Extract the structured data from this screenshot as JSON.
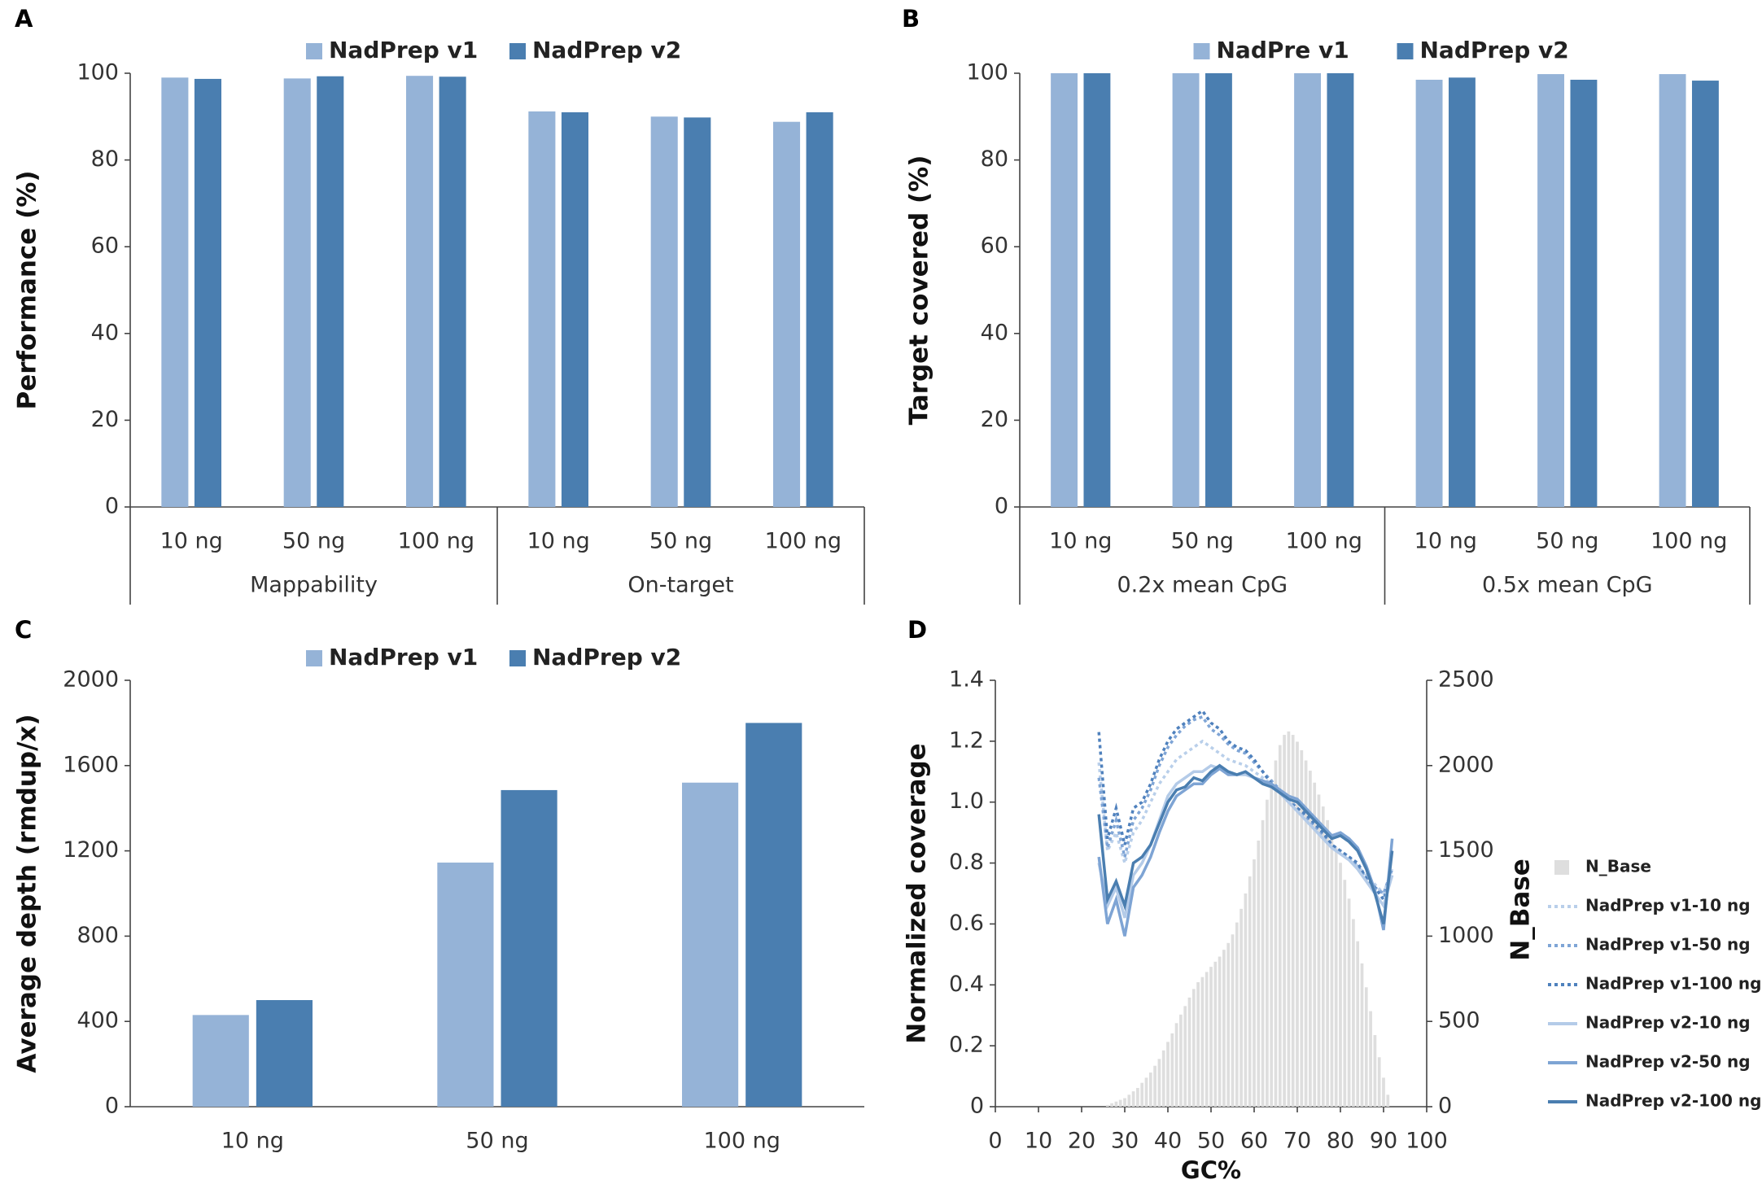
{
  "chart_data": [
    {
      "panel": "A",
      "type": "bar",
      "ylabel": "Performance (%)",
      "categories": [
        "10 ng",
        "50 ng",
        "100 ng",
        "10 ng",
        "50 ng",
        "100 ng"
      ],
      "groups": [
        "Mappability",
        "On-target"
      ],
      "series": [
        {
          "name": "NadPrep v1",
          "color": "#95b3d7",
          "values": [
            99,
            98.8,
            99.4,
            91.2,
            90,
            88.8
          ]
        },
        {
          "name": "NadPrep v2",
          "color": "#4a7eb0",
          "values": [
            98.7,
            99.3,
            99.2,
            91,
            89.8,
            91
          ]
        }
      ],
      "ylim": [
        0,
        100
      ],
      "yticks": [
        0,
        20,
        40,
        60,
        80,
        100
      ],
      "legend": "top"
    },
    {
      "panel": "B",
      "type": "bar",
      "ylabel": "Target covered (%)",
      "categories": [
        "10 ng",
        "50 ng",
        "100 ng",
        "10 ng",
        "50 ng",
        "100 ng"
      ],
      "groups": [
        "0.2x mean CpG",
        "0.5x mean CpG"
      ],
      "series": [
        {
          "name": "NadPre v1",
          "color": "#95b3d7",
          "values": [
            100,
            100,
            100,
            98.5,
            99.8,
            99.8
          ]
        },
        {
          "name": "NadPrep v2",
          "color": "#4a7eb0",
          "values": [
            100,
            100,
            100,
            99,
            98.5,
            98.3
          ]
        }
      ],
      "ylim": [
        0,
        100
      ],
      "yticks": [
        0,
        20,
        40,
        60,
        80,
        100
      ],
      "legend": "top"
    },
    {
      "panel": "C",
      "type": "bar",
      "ylabel": "Average depth (rmdup/x)",
      "categories": [
        "10 ng",
        "50 ng",
        "100 ng"
      ],
      "series": [
        {
          "name": "NadPrep v1",
          "color": "#95b3d7",
          "values": [
            430,
            1145,
            1520
          ]
        },
        {
          "name": "NadPrep v2",
          "color": "#4a7eb0",
          "values": [
            500,
            1485,
            1800
          ]
        }
      ],
      "ylim": [
        0,
        2000
      ],
      "yticks": [
        0,
        400,
        800,
        1200,
        1600,
        2000
      ],
      "legend": "top"
    },
    {
      "panel": "D",
      "type": "line",
      "xlabel": "GC%",
      "ylabel": "Normalized coverage",
      "y2label": "N_Base",
      "x": [
        24,
        26,
        28,
        30,
        32,
        34,
        36,
        38,
        40,
        42,
        44,
        46,
        48,
        50,
        52,
        54,
        56,
        58,
        60,
        62,
        64,
        66,
        68,
        70,
        72,
        74,
        76,
        78,
        80,
        82,
        84,
        86,
        88,
        90,
        92
      ],
      "series": [
        {
          "name": "N_Base",
          "type": "bar",
          "axis": "y2",
          "color": "#dedede",
          "x": [
            26,
            27,
            28,
            29,
            30,
            31,
            32,
            33,
            34,
            35,
            36,
            37,
            38,
            39,
            40,
            41,
            42,
            43,
            44,
            45,
            46,
            47,
            48,
            49,
            50,
            51,
            52,
            53,
            54,
            55,
            56,
            57,
            58,
            59,
            60,
            61,
            62,
            63,
            64,
            65,
            66,
            67,
            68,
            69,
            70,
            71,
            72,
            73,
            74,
            75,
            76,
            77,
            78,
            79,
            80,
            81,
            82,
            83,
            84,
            85,
            86,
            87,
            88,
            89,
            90,
            91
          ],
          "values": [
            10,
            20,
            30,
            40,
            50,
            70,
            90,
            110,
            140,
            170,
            200,
            240,
            280,
            330,
            380,
            430,
            490,
            540,
            590,
            640,
            690,
            730,
            760,
            790,
            820,
            850,
            880,
            920,
            960,
            1010,
            1080,
            1160,
            1250,
            1350,
            1450,
            1560,
            1680,
            1800,
            1920,
            2030,
            2120,
            2180,
            2200,
            2180,
            2140,
            2090,
            2030,
            1970,
            1900,
            1830,
            1760,
            1680,
            1600,
            1520,
            1430,
            1330,
            1220,
            1100,
            970,
            840,
            700,
            560,
            420,
            290,
            170,
            70
          ]
        },
        {
          "name": "NadPrep v1-10 ng",
          "color": "#b9cfea",
          "style": "dotted",
          "values": [
            1.13,
            0.84,
            0.9,
            0.8,
            0.9,
            0.94,
            1.0,
            1.06,
            1.1,
            1.14,
            1.16,
            1.18,
            1.2,
            1.18,
            1.16,
            1.14,
            1.13,
            1.12,
            1.1,
            1.08,
            1.06,
            1.03,
            1.0,
            0.97,
            0.94,
            0.91,
            0.88,
            0.85,
            0.83,
            0.81,
            0.79,
            0.76,
            0.73,
            0.7,
            0.78
          ]
        },
        {
          "name": "NadPrep v1-50 ng",
          "color": "#7fa5d6",
          "style": "dotted",
          "values": [
            1.08,
            0.85,
            0.94,
            0.82,
            0.94,
            0.98,
            1.04,
            1.12,
            1.18,
            1.22,
            1.25,
            1.27,
            1.28,
            1.24,
            1.22,
            1.19,
            1.17,
            1.16,
            1.13,
            1.1,
            1.07,
            1.04,
            1.01,
            0.98,
            0.95,
            0.92,
            0.89,
            0.86,
            0.84,
            0.82,
            0.79,
            0.75,
            0.72,
            0.7,
            0.78
          ]
        },
        {
          "name": "NadPrep v1-100 ng",
          "color": "#4f81bd",
          "style": "dotted",
          "values": [
            1.23,
            0.88,
            0.98,
            0.86,
            0.98,
            1.0,
            1.06,
            1.14,
            1.2,
            1.24,
            1.26,
            1.28,
            1.3,
            1.26,
            1.24,
            1.2,
            1.18,
            1.17,
            1.14,
            1.1,
            1.06,
            1.03,
            1.0,
            0.98,
            0.96,
            0.93,
            0.9,
            0.86,
            0.84,
            0.82,
            0.8,
            0.75,
            0.72,
            0.68,
            0.76
          ]
        },
        {
          "name": "NadPrep v2-10 ng",
          "color": "#b4cbe8",
          "style": "solid",
          "values": [
            0.8,
            0.66,
            0.72,
            0.62,
            0.76,
            0.8,
            0.86,
            0.94,
            1.02,
            1.06,
            1.08,
            1.1,
            1.1,
            1.12,
            1.11,
            1.1,
            1.09,
            1.09,
            1.08,
            1.07,
            1.06,
            1.03,
            1.0,
            0.97,
            0.94,
            0.91,
            0.88,
            0.85,
            0.83,
            0.81,
            0.78,
            0.74,
            0.7,
            0.66,
            0.76
          ]
        },
        {
          "name": "NadPrep v2-50 ng",
          "color": "#7ea4d4",
          "style": "solid",
          "values": [
            0.82,
            0.6,
            0.68,
            0.56,
            0.72,
            0.76,
            0.82,
            0.9,
            0.97,
            1.02,
            1.04,
            1.06,
            1.06,
            1.09,
            1.11,
            1.09,
            1.09,
            1.1,
            1.08,
            1.07,
            1.06,
            1.04,
            1.02,
            1.01,
            0.98,
            0.95,
            0.92,
            0.89,
            0.9,
            0.88,
            0.85,
            0.79,
            0.71,
            0.58,
            0.88
          ]
        },
        {
          "name": "NadPrep v2-100 ng",
          "color": "#4a7eb0",
          "style": "solid",
          "values": [
            0.96,
            0.68,
            0.74,
            0.66,
            0.8,
            0.82,
            0.86,
            0.93,
            1.0,
            1.04,
            1.05,
            1.08,
            1.07,
            1.1,
            1.12,
            1.1,
            1.09,
            1.1,
            1.08,
            1.06,
            1.05,
            1.03,
            1.01,
            1.0,
            0.97,
            0.94,
            0.91,
            0.88,
            0.89,
            0.87,
            0.84,
            0.78,
            0.7,
            0.6,
            0.84
          ]
        }
      ],
      "xlim": [
        0,
        100
      ],
      "xticks": [
        0,
        10,
        20,
        30,
        40,
        50,
        60,
        70,
        80,
        90,
        100
      ],
      "ylim": [
        0,
        1.4
      ],
      "yticks": [
        0,
        0.2,
        0.4,
        0.6,
        0.8,
        {
          "value": 1,
          "label": "1.0"
        },
        1.2,
        1.4
      ],
      "y2lim": [
        0,
        2500
      ],
      "y2ticks": [
        0,
        500,
        1000,
        1500,
        2000,
        2500
      ],
      "legend": "right"
    }
  ]
}
